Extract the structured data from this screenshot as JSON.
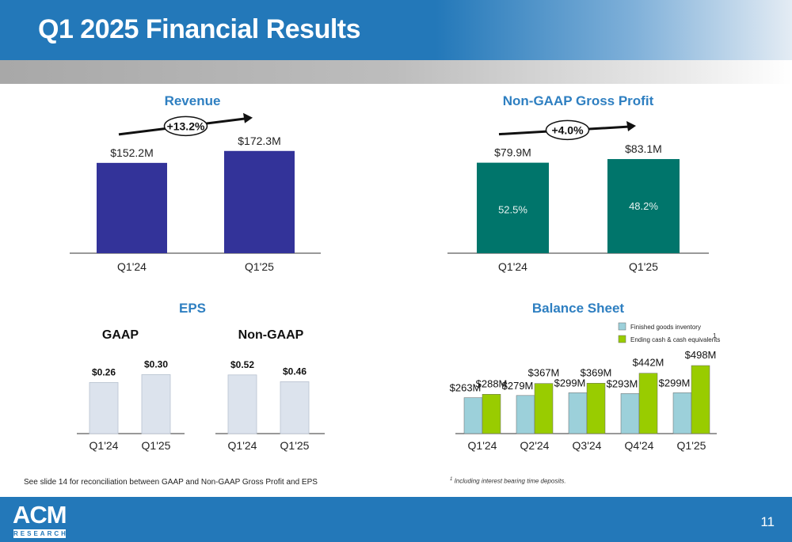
{
  "title": "Q1 2025 Financial Results",
  "page_number": "11",
  "logo": {
    "main": "ACM",
    "sub": "RESEARCH"
  },
  "footnote_left": "See slide 14 for reconciliation between GAAP and Non-GAAP Gross Profit and EPS",
  "footnote_right": {
    "marker": "1",
    "text": "Including interest bearing time deposits."
  },
  "sections": {
    "revenue": "Revenue",
    "gross_profit": "Non-GAAP Gross Profit",
    "eps": "EPS",
    "balance_sheet": "Balance Sheet"
  },
  "colors": {
    "revenue_bar": "#333399",
    "gross_profit_bar": "#00756b",
    "eps_bar": "#dce3ed",
    "inventory_bar": "#9cd0da",
    "cash_bar": "#99cc00",
    "title_blue": "#2e7fc1"
  },
  "chart_data": [
    {
      "id": "revenue",
      "type": "bar",
      "title": "Revenue",
      "categories": [
        "Q1'24",
        "Q1'25"
      ],
      "values": [
        152.2,
        172.3
      ],
      "value_labels": [
        "$152.2M",
        "$172.3M"
      ],
      "growth_label": "+13.2%",
      "ylim": [
        0,
        200
      ]
    },
    {
      "id": "gross_profit",
      "type": "bar",
      "title": "Non-GAAP Gross Profit",
      "categories": [
        "Q1'24",
        "Q1'25"
      ],
      "values": [
        79.9,
        83.1
      ],
      "value_labels": [
        "$79.9M",
        "$83.1M"
      ],
      "inner_labels": [
        "52.5%",
        "48.2%"
      ],
      "growth_label": "+4.0%",
      "ylim": [
        0,
        95
      ]
    },
    {
      "id": "eps_gaap",
      "type": "bar",
      "title": "GAAP",
      "categories": [
        "Q1'24",
        "Q1'25"
      ],
      "values": [
        0.26,
        0.3
      ],
      "value_labels": [
        "$0.26",
        "$0.30"
      ],
      "ylim": [
        0,
        0.35
      ]
    },
    {
      "id": "eps_nongaap",
      "type": "bar",
      "title": "Non-GAAP",
      "categories": [
        "Q1'24",
        "Q1'25"
      ],
      "values": [
        0.52,
        0.46
      ],
      "value_labels": [
        "$0.52",
        "$0.46"
      ],
      "ylim": [
        0,
        0.61
      ]
    },
    {
      "id": "balance_sheet",
      "type": "bar",
      "title": "Balance Sheet",
      "categories": [
        "Q1'24",
        "Q2'24",
        "Q3'24",
        "Q4'24",
        "Q1'25"
      ],
      "series": [
        {
          "name": "Finished goods inventory",
          "values": [
            263,
            279,
            299,
            293,
            299
          ],
          "value_labels": [
            "$263M",
            "$279M",
            "$299M",
            "$293M",
            "$299M"
          ]
        },
        {
          "name": "Ending cash & cash equivalents",
          "legend_marker": "1",
          "values": [
            288,
            367,
            369,
            442,
            498
          ],
          "value_labels": [
            "$288M",
            "$367M",
            "$369M",
            "$442M",
            "$498M"
          ]
        }
      ],
      "legend_position": "top-right",
      "ylim": [
        0,
        550
      ]
    }
  ]
}
